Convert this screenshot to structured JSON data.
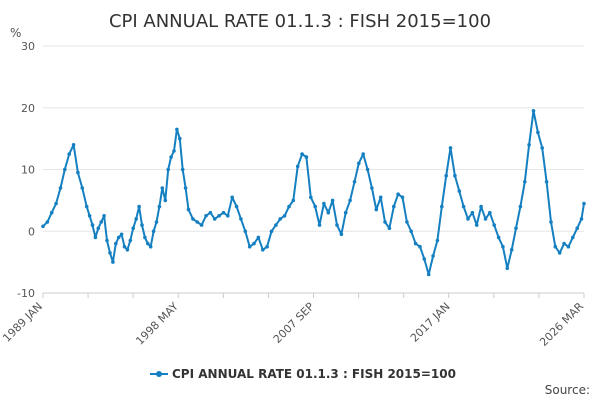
{
  "chart_data": {
    "type": "line",
    "title": "CPI ANNUAL RATE 01.1.3 : FISH 2015=100",
    "ylabel_unit": "%",
    "ylim": [
      -10,
      30
    ],
    "yticks": [
      30,
      20,
      10,
      0,
      -10
    ],
    "xlim": [
      1989.0,
      2026.17
    ],
    "xticks": [
      {
        "label": "1989 JAN",
        "x": 1989.0
      },
      {
        "label": "1998 MAY",
        "x": 1998.33
      },
      {
        "label": "2007 SEP",
        "x": 2007.67
      },
      {
        "label": "2017 JAN",
        "x": 2017.0
      },
      {
        "label": "2026 MAR",
        "x": 2026.17
      }
    ],
    "legend": {
      "position": "bottom-center"
    },
    "series": [
      {
        "name": "CPI ANNUAL RATE 01.1.3 : FISH 2015=100",
        "color": "#1580c1",
        "x": [
          1989.0,
          1989.3,
          1989.6,
          1989.9,
          1990.2,
          1990.5,
          1990.8,
          1991.1,
          1991.4,
          1991.7,
          1992.0,
          1992.2,
          1992.4,
          1992.6,
          1992.8,
          1993.0,
          1993.2,
          1993.4,
          1993.6,
          1993.8,
          1994.0,
          1994.2,
          1994.4,
          1994.6,
          1994.8,
          1995.0,
          1995.2,
          1995.4,
          1995.6,
          1995.8,
          1996.0,
          1996.2,
          1996.4,
          1996.6,
          1996.8,
          1997.0,
          1997.2,
          1997.4,
          1997.6,
          1997.8,
          1998.0,
          1998.2,
          1998.4,
          1998.6,
          1998.8,
          1999.0,
          1999.3,
          1999.6,
          1999.9,
          2000.2,
          2000.5,
          2000.8,
          2001.1,
          2001.4,
          2001.7,
          2002.0,
          2002.3,
          2002.6,
          2002.9,
          2003.2,
          2003.5,
          2003.8,
          2004.1,
          2004.4,
          2004.7,
          2005.0,
          2005.3,
          2005.6,
          2005.9,
          2006.2,
          2006.5,
          2006.8,
          2007.1,
          2007.4,
          2007.7,
          2008.0,
          2008.3,
          2008.6,
          2008.9,
          2009.2,
          2009.5,
          2009.8,
          2010.1,
          2010.4,
          2010.7,
          2011.0,
          2011.3,
          2011.6,
          2011.9,
          2012.2,
          2012.5,
          2012.8,
          2013.1,
          2013.4,
          2013.7,
          2014.0,
          2014.3,
          2014.6,
          2014.9,
          2015.2,
          2015.5,
          2015.8,
          2016.1,
          2016.4,
          2016.7,
          2017.0,
          2017.3,
          2017.6,
          2017.9,
          2018.2,
          2018.5,
          2018.8,
          2019.1,
          2019.4,
          2019.7,
          2020.0,
          2020.3,
          2020.6,
          2020.9,
          2021.2,
          2021.5,
          2021.8,
          2022.1,
          2022.4,
          2022.7,
          2023.0,
          2023.3,
          2023.6,
          2023.9,
          2024.2,
          2024.5,
          2024.8,
          2025.1,
          2025.4,
          2025.7,
          2026.0,
          2026.17
        ],
        "values": [
          0.8,
          1.5,
          3.0,
          4.5,
          7.0,
          10.0,
          12.5,
          14.0,
          9.5,
          7.0,
          4.0,
          2.5,
          1.0,
          -1.0,
          0.5,
          1.5,
          2.5,
          -1.5,
          -3.5,
          -5.0,
          -2.0,
          -1.0,
          -0.5,
          -2.5,
          -3.0,
          -1.5,
          0.5,
          2.0,
          4.0,
          1.0,
          -1.0,
          -2.0,
          -2.5,
          0.0,
          1.5,
          4.0,
          7.0,
          5.0,
          10.0,
          12.0,
          13.0,
          16.5,
          15.0,
          10.0,
          7.0,
          3.5,
          2.0,
          1.5,
          1.0,
          2.5,
          3.0,
          2.0,
          2.5,
          3.0,
          2.5,
          5.5,
          4.0,
          2.0,
          0.0,
          -2.5,
          -2.0,
          -1.0,
          -3.0,
          -2.5,
          0.0,
          1.0,
          2.0,
          2.5,
          4.0,
          5.0,
          10.5,
          12.5,
          12.0,
          5.5,
          4.0,
          1.0,
          4.5,
          3.0,
          5.0,
          1.0,
          -0.5,
          3.0,
          5.0,
          8.0,
          11.0,
          12.5,
          10.0,
          7.0,
          3.5,
          5.5,
          1.5,
          0.5,
          4.0,
          6.0,
          5.5,
          1.5,
          0.0,
          -2.0,
          -2.5,
          -4.5,
          -7.0,
          -4.0,
          -1.5,
          4.0,
          9.0,
          13.5,
          9.0,
          6.5,
          4.0,
          2.0,
          3.0,
          1.0,
          4.0,
          2.0,
          3.0,
          1.0,
          -1.0,
          -2.5,
          -6.0,
          -3.0,
          0.5,
          4.0,
          8.0,
          14.0,
          19.5,
          16.0,
          13.5,
          8.0,
          1.5,
          -2.5,
          -3.5,
          -2.0,
          -2.5,
          -1.0,
          0.5,
          2.0,
          4.5
        ]
      }
    ],
    "source_label": "Source:"
  }
}
